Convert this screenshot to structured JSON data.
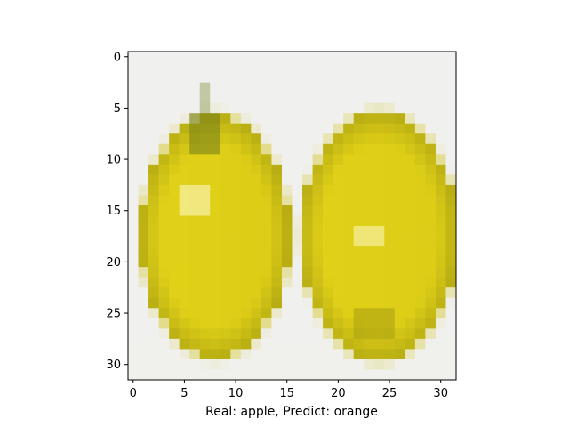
{
  "figure": {
    "caption": "Real: apple, Predict: orange",
    "axes": {
      "x_ticks": [
        0,
        5,
        10,
        15,
        20,
        25,
        30
      ],
      "y_ticks": [
        0,
        5,
        10,
        15,
        20,
        25,
        30
      ],
      "xlim": [
        -0.5,
        31.5
      ],
      "ylim": [
        31.5,
        -0.5
      ]
    },
    "image": {
      "description_palette": {
        "background": "#f0f0ee",
        "fruit_light": "#e8d81a",
        "fruit_mid": "#d4c414",
        "fruit_dark": "#9a9410",
        "highlight": "#f6f0a0",
        "stem": "#6f7a18"
      }
    }
  }
}
